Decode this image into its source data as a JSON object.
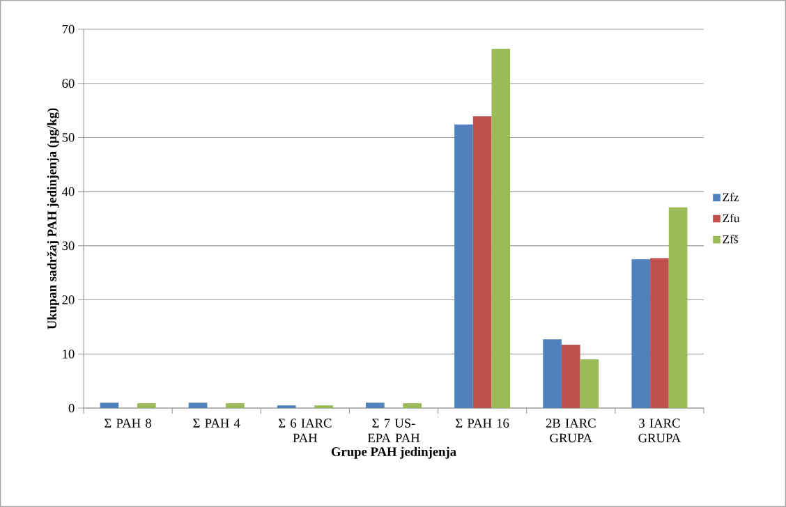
{
  "chart_data": {
    "type": "bar",
    "xlabel": "Grupe PAH jedinjenja",
    "ylabel": "Ukupan sadržaj PAH jedinjenja (µg/kg)",
    "categories": [
      "Σ PAH 8",
      "Σ PAH 4",
      "Σ 6 IARC PAH",
      "Σ 7 US-EPA PAH",
      "Σ PAH 16",
      "2B IARC GRUPA",
      "3 IARC GRUPA"
    ],
    "series": [
      {
        "name": "Zfz",
        "color": "#4f81bd",
        "values": [
          1.0,
          1.0,
          0.5,
          1.0,
          52.4,
          12.7,
          27.5
        ]
      },
      {
        "name": "Zfu",
        "color": "#c0504d",
        "values": [
          0,
          0,
          0,
          0,
          53.9,
          11.7,
          27.7
        ]
      },
      {
        "name": "Zfš",
        "color": "#9bbb59",
        "values": [
          0.9,
          0.9,
          0.5,
          0.9,
          66.4,
          9.0,
          37.1
        ]
      }
    ],
    "ylim": [
      0,
      70
    ],
    "yticks": [
      0,
      10,
      20,
      30,
      40,
      50,
      60,
      70
    ],
    "grid": "y",
    "legend": "right"
  }
}
